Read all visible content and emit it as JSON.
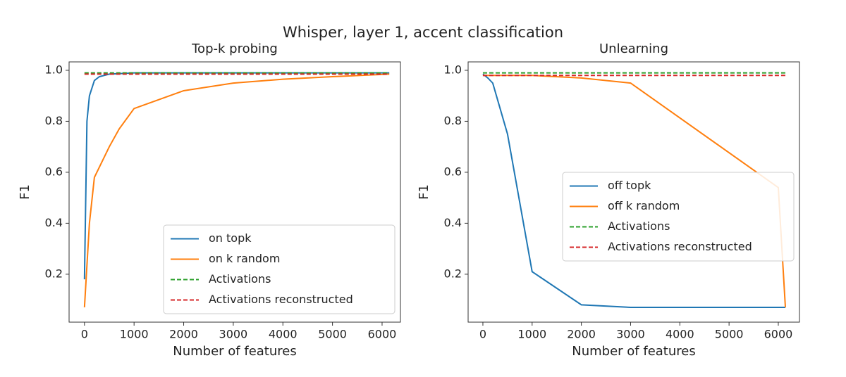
{
  "title": "Whisper, layer 1, accent classification",
  "chart_data": [
    {
      "type": "line",
      "title": "Top-k probing",
      "xlabel": "Number of features",
      "ylabel": "F1",
      "xlim": [
        -310,
        6370
      ],
      "ylim": [
        0.012,
        1.033
      ],
      "xticks": [
        0,
        1000,
        2000,
        3000,
        4000,
        5000,
        6000
      ],
      "yticks": [
        0.2,
        0.4,
        0.6,
        0.8,
        {
          "value": 1.0,
          "label": "1.0"
        }
      ],
      "legend": "lower right",
      "series": [
        {
          "name": "on topk",
          "color": "#1f77b4",
          "linestyle": "solid",
          "x": [
            0,
            50,
            100,
            200,
            300,
            500,
            1000,
            2000,
            3000,
            4000,
            5000,
            6144
          ],
          "values": [
            0.18,
            0.8,
            0.9,
            0.96,
            0.975,
            0.985,
            0.99,
            0.99,
            0.99,
            0.99,
            0.99,
            0.99
          ]
        },
        {
          "name": "on k random",
          "color": "#ff7f0e",
          "linestyle": "solid",
          "x": [
            0,
            100,
            200,
            500,
            700,
            1000,
            2000,
            3000,
            4000,
            5000,
            6144
          ],
          "values": [
            0.07,
            0.4,
            0.58,
            0.7,
            0.77,
            0.85,
            0.92,
            0.95,
            0.965,
            0.975,
            0.985
          ]
        },
        {
          "name": "Activations",
          "color": "#2ca02c",
          "linestyle": "dashed",
          "x": [
            0,
            6144
          ],
          "values": [
            0.99,
            0.99
          ]
        },
        {
          "name": "Activations reconstructed",
          "color": "#d62728",
          "linestyle": "dashed",
          "x": [
            0,
            6144
          ],
          "values": [
            0.985,
            0.985
          ]
        }
      ]
    },
    {
      "type": "line",
      "title": "Unlearning",
      "xlabel": "Number of features",
      "ylabel": "F1",
      "xlim": [
        -300,
        6430
      ],
      "ylim": [
        0.012,
        1.033
      ],
      "xticks": [
        0,
        1000,
        2000,
        3000,
        4000,
        5000,
        6000
      ],
      "yticks": [
        0.2,
        0.4,
        0.6,
        0.8,
        {
          "value": 1.0,
          "label": "1.0"
        }
      ],
      "legend": "center right",
      "series": [
        {
          "name": "off topk",
          "color": "#1f77b4",
          "linestyle": "solid",
          "x": [
            0,
            100,
            200,
            500,
            1000,
            2000,
            3000,
            6144
          ],
          "values": [
            0.985,
            0.97,
            0.95,
            0.75,
            0.21,
            0.08,
            0.07,
            0.07
          ]
        },
        {
          "name": "off k random",
          "color": "#ff7f0e",
          "linestyle": "solid",
          "x": [
            0,
            1000,
            2000,
            3000,
            6000,
            6144
          ],
          "values": [
            0.98,
            0.98,
            0.97,
            0.95,
            0.54,
            0.07
          ]
        },
        {
          "name": "Activations",
          "color": "#2ca02c",
          "linestyle": "dashed",
          "x": [
            0,
            6144
          ],
          "values": [
            0.99,
            0.99
          ]
        },
        {
          "name": "Activations reconstructed",
          "color": "#d62728",
          "linestyle": "dashed",
          "x": [
            0,
            6144
          ],
          "values": [
            0.98,
            0.98
          ]
        }
      ]
    }
  ]
}
